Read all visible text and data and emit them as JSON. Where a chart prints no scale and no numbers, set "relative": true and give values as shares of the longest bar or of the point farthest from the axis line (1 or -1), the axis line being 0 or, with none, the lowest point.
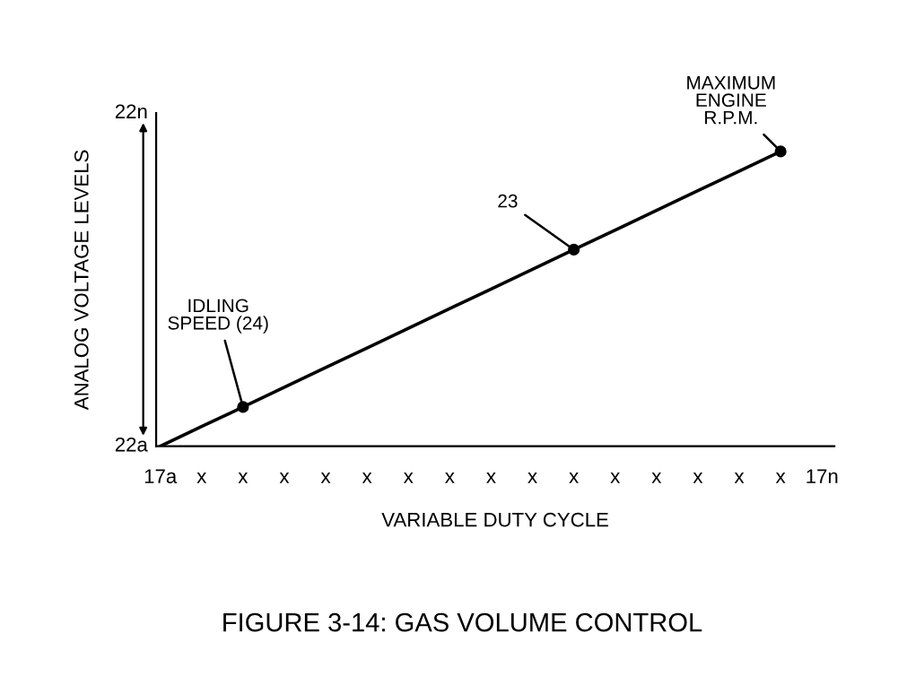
{
  "chart_data": {
    "type": "line",
    "relative": true,
    "title": "FIGURE 3-14: GAS VOLUME CONTROL",
    "xlabel": "VARIABLE DUTY CYCLE",
    "ylabel": "ANALOG VOLTAGE LEVELS",
    "categories": [
      "17a",
      "x",
      "x",
      "x",
      "x",
      "x",
      "x",
      "x",
      "x",
      "x",
      "x",
      "x",
      "x",
      "x",
      "x",
      "x",
      "17n"
    ],
    "series": [
      {
        "color": "#000000",
        "values": [
          0,
          0.067,
          0.133,
          0.2,
          0.267,
          0.333,
          0.4,
          0.467,
          0.533,
          0.6,
          0.667,
          0.733,
          0.8,
          0.867,
          0.933,
          1,
          null
        ]
      },
      {
        "type": "scatter",
        "marker": "circle",
        "color": "#000000",
        "values": [
          null,
          null,
          0.133,
          null,
          null,
          null,
          null,
          null,
          null,
          null,
          0.667,
          null,
          null,
          null,
          null,
          1,
          null
        ]
      }
    ],
    "annotations": [
      "IDLING\nSPEED (24)",
      "23",
      "MAXIMUM\nENGINE\nR.P.M.",
      "22n",
      "22a"
    ],
    "grid": false,
    "legend": false
  }
}
